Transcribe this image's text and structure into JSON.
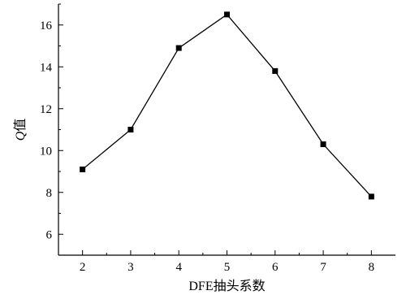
{
  "chart_data": {
    "type": "line",
    "title": "",
    "xlabel": "DFE抽头系数",
    "ylabel_italic": "Q",
    "ylabel_rest": "值",
    "xlim": [
      1.5,
      8.5
    ],
    "ylim": [
      5,
      17
    ],
    "xticks": [
      2,
      3,
      4,
      5,
      6,
      7,
      8
    ],
    "yticks": [
      6,
      8,
      10,
      12,
      14,
      16
    ],
    "grid": false,
    "marker": "square",
    "line_color": "#000000",
    "series": [
      {
        "x": [
          2,
          3,
          4,
          5,
          6,
          7,
          8
        ],
        "values": [
          9.1,
          11.0,
          14.9,
          16.5,
          13.8,
          10.3,
          7.8
        ]
      }
    ]
  }
}
